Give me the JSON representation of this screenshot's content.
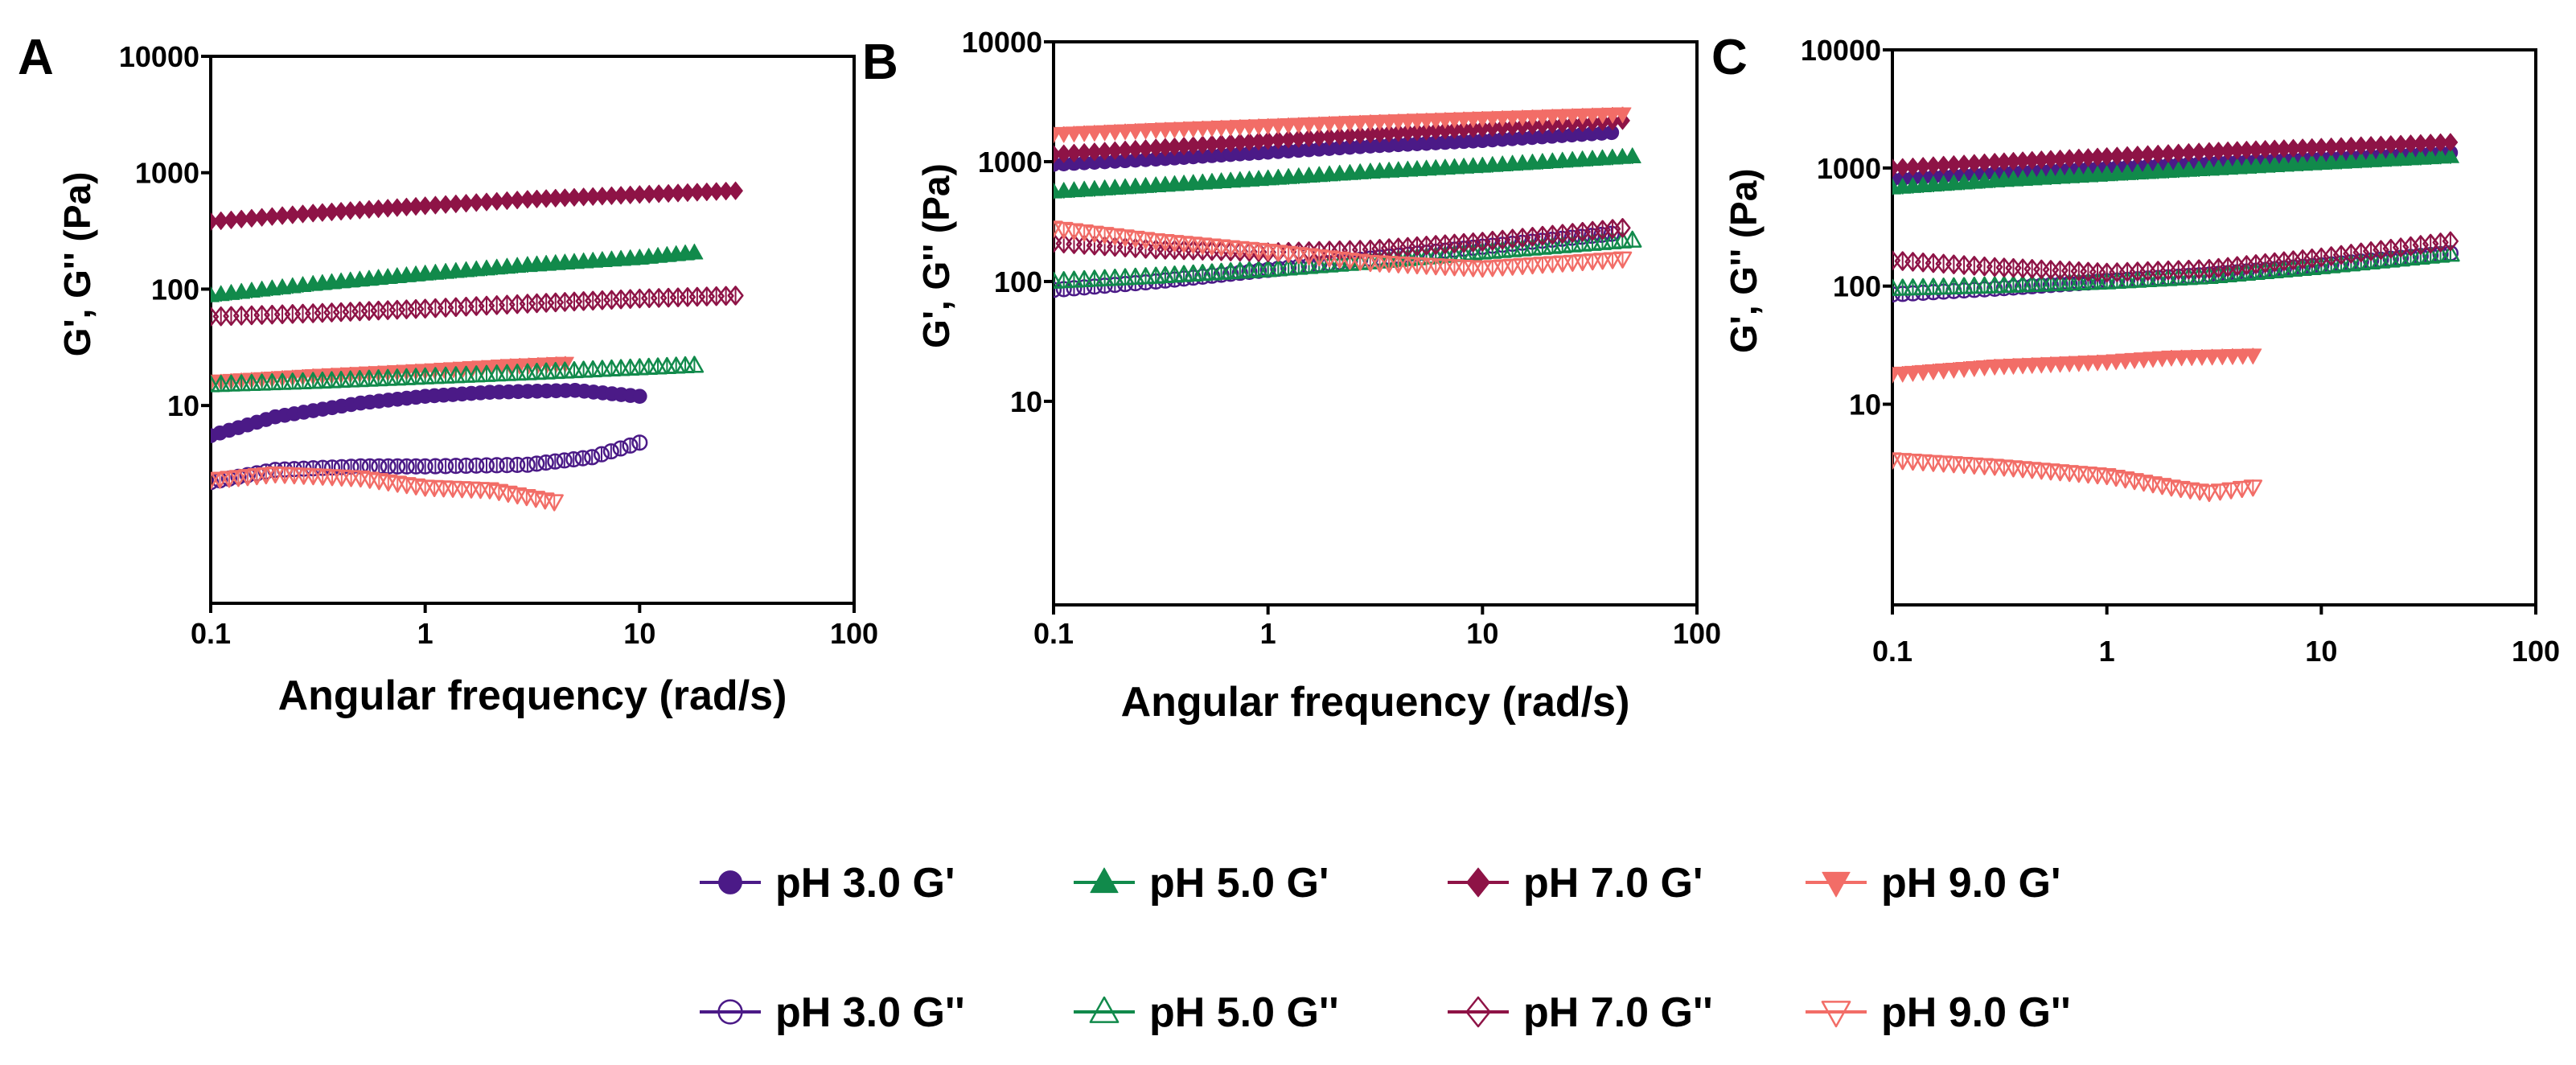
{
  "chart_data": [
    {
      "type": "scatter",
      "panel": "A",
      "xlabel": "Angular frequency (rad/s)",
      "ylabel": "G', G'' (Pa)",
      "xscale": "log",
      "yscale": "log",
      "xlim": [
        0.1,
        100
      ],
      "ylim": [
        0.2,
        10000
      ],
      "xticks": [
        "0.1",
        "1",
        "10",
        "100"
      ],
      "yticks": [
        "10",
        "100",
        "1000",
        "10000"
      ],
      "series": [
        {
          "name": "pH 3.0 G'",
          "x": [
            0.1,
            0.2,
            0.5,
            1,
            2,
            5,
            10
          ],
          "y": [
            5.5,
            8,
            10.5,
            12,
            13,
            13.5,
            12
          ]
        },
        {
          "name": "pH 5.0 G'",
          "x": [
            0.1,
            0.3,
            1,
            3,
            10,
            18
          ],
          "y": [
            88,
            110,
            135,
            160,
            185,
            205
          ]
        },
        {
          "name": "pH 7.0 G'",
          "x": [
            0.1,
            0.3,
            1,
            3,
            10,
            28
          ],
          "y": [
            380,
            450,
            520,
            590,
            650,
            700
          ]
        },
        {
          "name": "pH 9.0 G'",
          "x": [
            0.1,
            0.3,
            1,
            2.5,
            4.5
          ],
          "y": [
            16,
            18,
            20,
            22,
            23
          ]
        },
        {
          "name": "pH 3.0 G''",
          "x": [
            0.1,
            0.2,
            0.5,
            1,
            3,
            6,
            10
          ],
          "y": [
            2.2,
            2.8,
            3,
            3,
            3.1,
            3.6,
            4.8
          ]
        },
        {
          "name": "pH 5.0 G''",
          "x": [
            0.1,
            0.3,
            1,
            3,
            10,
            18
          ],
          "y": [
            15,
            16,
            17.5,
            19,
            21,
            22
          ]
        },
        {
          "name": "pH 7.0 G''",
          "x": [
            0.1,
            0.3,
            1,
            3,
            10,
            28
          ],
          "y": [
            58,
            62,
            68,
            75,
            83,
            88
          ]
        },
        {
          "name": "pH 9.0 G''",
          "x": [
            0.1,
            0.2,
            0.5,
            1,
            2,
            4
          ],
          "y": [
            2.3,
            2.6,
            2.4,
            2.0,
            1.9,
            1.5
          ]
        }
      ]
    },
    {
      "type": "scatter",
      "panel": "B",
      "xlabel": "Angular frequency (rad/s)",
      "ylabel": "G', G'' (Pa)",
      "xscale": "log",
      "yscale": "log",
      "xlim": [
        0.1,
        100
      ],
      "ylim": [
        0.2,
        10000
      ],
      "xticks": [
        "0.1",
        "1",
        "10",
        "100"
      ],
      "yticks": [
        "10",
        "100",
        "1000",
        "10000"
      ],
      "series": [
        {
          "name": "pH 3.0 G'",
          "x": [
            0.1,
            0.3,
            1,
            3,
            10,
            40
          ],
          "y": [
            950,
            1050,
            1200,
            1350,
            1500,
            1750
          ]
        },
        {
          "name": "pH 5.0 G'",
          "x": [
            0.1,
            0.3,
            1,
            3,
            10,
            50
          ],
          "y": [
            560,
            630,
            720,
            820,
            920,
            1100
          ]
        },
        {
          "name": "pH 7.0 G'",
          "x": [
            0.1,
            0.3,
            1,
            3,
            10,
            45
          ],
          "y": [
            1150,
            1300,
            1500,
            1700,
            1900,
            2200
          ]
        },
        {
          "name": "pH 9.0 G'",
          "x": [
            0.1,
            0.3,
            1,
            3,
            10,
            45
          ],
          "y": [
            1700,
            1850,
            2000,
            2150,
            2300,
            2500
          ]
        },
        {
          "name": "pH 3.0 G''",
          "x": [
            0.1,
            0.3,
            1,
            3,
            10,
            40
          ],
          "y": [
            85,
            100,
            125,
            155,
            195,
            250
          ]
        },
        {
          "name": "pH 5.0 G''",
          "x": [
            0.1,
            0.3,
            1,
            3,
            10,
            50
          ],
          "y": [
            100,
            110,
            125,
            145,
            175,
            220
          ]
        },
        {
          "name": "pH 7.0 G''",
          "x": [
            0.1,
            0.3,
            1,
            3,
            10,
            45
          ],
          "y": [
            210,
            185,
            175,
            185,
            215,
            280
          ]
        },
        {
          "name": "pH 9.0 G''",
          "x": [
            0.1,
            0.3,
            1,
            3,
            10,
            45
          ],
          "y": [
            280,
            220,
            180,
            145,
            130,
            155
          ]
        }
      ]
    },
    {
      "type": "scatter",
      "panel": "C",
      "xlabel": "",
      "ylabel": "G', G'' (Pa)",
      "xscale": "log",
      "yscale": "log",
      "xlim": [
        0.1,
        100
      ],
      "ylim": [
        0.2,
        10000
      ],
      "xticks": [
        "0.1",
        "1",
        "10",
        "100"
      ],
      "yticks": [
        "10",
        "100",
        "1000",
        "10000"
      ],
      "series": [
        {
          "name": "pH 3.0 G'",
          "x": [
            0.1,
            0.3,
            1,
            3,
            10,
            40
          ],
          "y": [
            800,
            900,
            1000,
            1100,
            1200,
            1350
          ]
        },
        {
          "name": "pH 5.0 G'",
          "x": [
            0.1,
            0.3,
            1,
            3,
            10,
            40
          ],
          "y": [
            680,
            780,
            880,
            980,
            1100,
            1250
          ]
        },
        {
          "name": "pH 7.0 G'",
          "x": [
            0.1,
            0.3,
            1,
            3,
            10,
            40
          ],
          "y": [
            1000,
            1120,
            1250,
            1380,
            1500,
            1650
          ]
        },
        {
          "name": "pH 9.0 G'",
          "x": [
            0.1,
            0.3,
            1,
            2,
            4.8
          ],
          "y": [
            18,
            21,
            23,
            25,
            26
          ]
        },
        {
          "name": "pH 3.0 G''",
          "x": [
            0.1,
            0.3,
            1,
            3,
            10,
            40
          ],
          "y": [
            85,
            95,
            110,
            125,
            150,
            190
          ]
        },
        {
          "name": "pH 5.0 G''",
          "x": [
            0.1,
            0.3,
            1,
            3,
            10,
            40
          ],
          "y": [
            95,
            100,
            108,
            120,
            145,
            185
          ]
        },
        {
          "name": "pH 7.0 G''",
          "x": [
            0.1,
            0.3,
            1,
            3,
            10,
            40
          ],
          "y": [
            165,
            145,
            130,
            140,
            175,
            240
          ]
        },
        {
          "name": "pH 9.0 G''",
          "x": [
            0.1,
            0.3,
            1,
            2,
            3,
            4.8
          ],
          "y": [
            3.4,
            3.0,
            2.5,
            2.0,
            1.8,
            2.0
          ]
        }
      ]
    }
  ],
  "legend": {
    "items": [
      {
        "label": "pH 3.0 G'",
        "color": "#4B1A87",
        "marker": "circle",
        "filled": true
      },
      {
        "label": "pH 5.0 G'",
        "color": "#118A4B",
        "marker": "triangle-up",
        "filled": true
      },
      {
        "label": "pH 7.0 G'",
        "color": "#8E1346",
        "marker": "diamond",
        "filled": true
      },
      {
        "label": "pH 9.0 G'",
        "color": "#F26D67",
        "marker": "triangle-down",
        "filled": true
      },
      {
        "label": "pH 3.0 G''",
        "color": "#4B1A87",
        "marker": "circle",
        "filled": false
      },
      {
        "label": "pH 5.0 G''",
        "color": "#118A4B",
        "marker": "triangle-up",
        "filled": false
      },
      {
        "label": "pH 7.0 G''",
        "color": "#8E1346",
        "marker": "diamond",
        "filled": false
      },
      {
        "label": "pH 9.0 G''",
        "color": "#F26D67",
        "marker": "triangle-down",
        "filled": false
      }
    ]
  }
}
